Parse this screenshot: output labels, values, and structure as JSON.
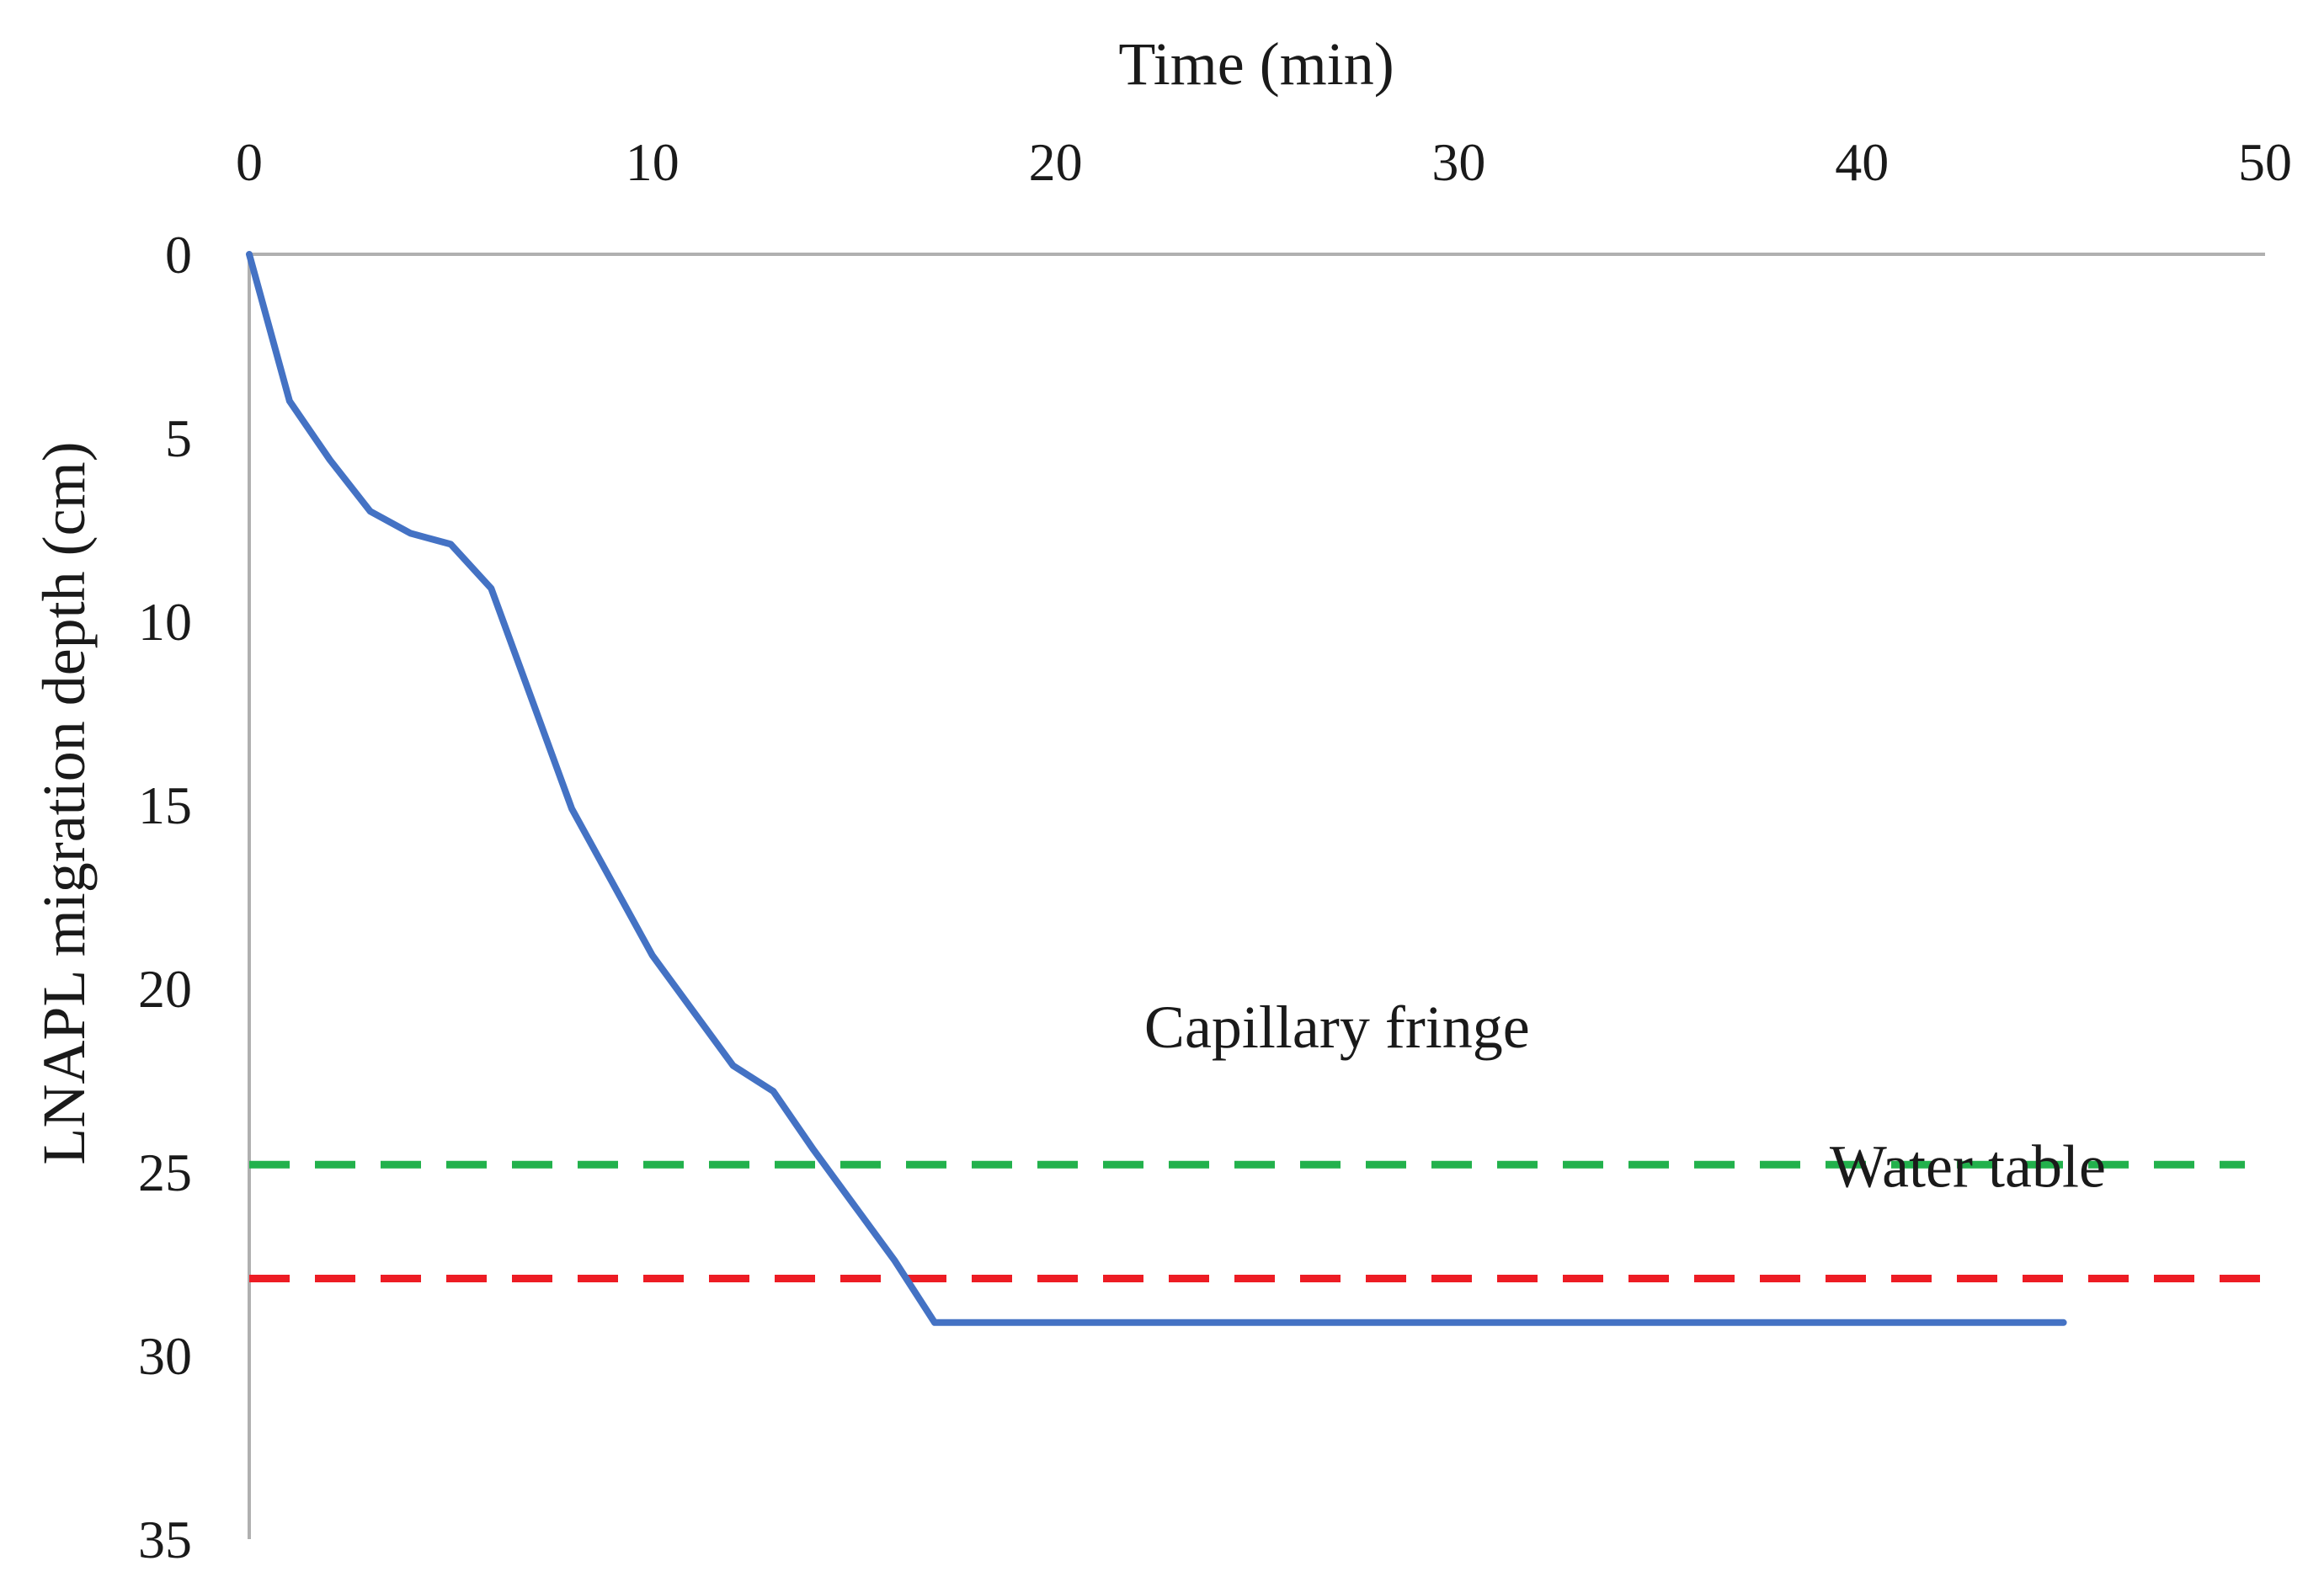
{
  "chart_data": {
    "type": "line",
    "xlabel": "Time (min)",
    "ylabel": "LNAPL migration depth (cm)",
    "xlim": [
      0,
      50
    ],
    "ylim": [
      0,
      35
    ],
    "y_inverted": true,
    "x_axis_position": "top",
    "x_ticks": [
      "0",
      "10",
      "20",
      "30",
      "40",
      "50"
    ],
    "y_ticks": [
      "0",
      "5",
      "10",
      "15",
      "20",
      "25",
      "30",
      "35"
    ],
    "grid": false,
    "series": [
      {
        "name": "LNAPL migration depth",
        "color": "#4472C4",
        "style": "solid",
        "x": [
          0,
          1,
          2,
          3,
          4,
          5,
          6,
          7,
          8,
          9,
          10,
          11,
          12,
          13,
          14,
          15,
          16,
          17,
          18,
          19,
          20,
          21,
          22,
          23,
          24,
          25,
          26,
          27,
          28,
          29,
          30,
          31,
          32,
          33,
          34,
          35,
          36,
          37,
          38,
          39,
          40,
          41,
          42,
          43,
          44,
          45
        ],
        "y": [
          0,
          4,
          5.6,
          7,
          7.6,
          7.9,
          9.1,
          12.1,
          15.1,
          17.1,
          19.1,
          20.6,
          22.1,
          22.8,
          24.4,
          25.9,
          27.4,
          29.1,
          29.1,
          29.1,
          29.1,
          29.1,
          29.1,
          29.1,
          29.1,
          29.1,
          29.1,
          29.1,
          29.1,
          29.1,
          29.1,
          29.1,
          29.1,
          29.1,
          29.1,
          29.1,
          29.1,
          29.1,
          29.1,
          29.1,
          29.1,
          29.1,
          29.1,
          29.1,
          29.1,
          29.1
        ]
      }
    ],
    "reference_lines": [
      {
        "name": "Capillary fringe",
        "y": 24.8,
        "x_start": 0,
        "x_end": 49.5,
        "color": "#22B14C",
        "style": "dashed"
      },
      {
        "name": "Water table",
        "y": 27.9,
        "x_start": 0,
        "x_end": 50,
        "color": "#ED1C24",
        "style": "dashed"
      }
    ],
    "annotations": [
      {
        "text": "Capillary fringe",
        "x": 22.2,
        "y": 21.6
      },
      {
        "text": "Water table",
        "x": 39.2,
        "y": 25.4
      }
    ]
  }
}
